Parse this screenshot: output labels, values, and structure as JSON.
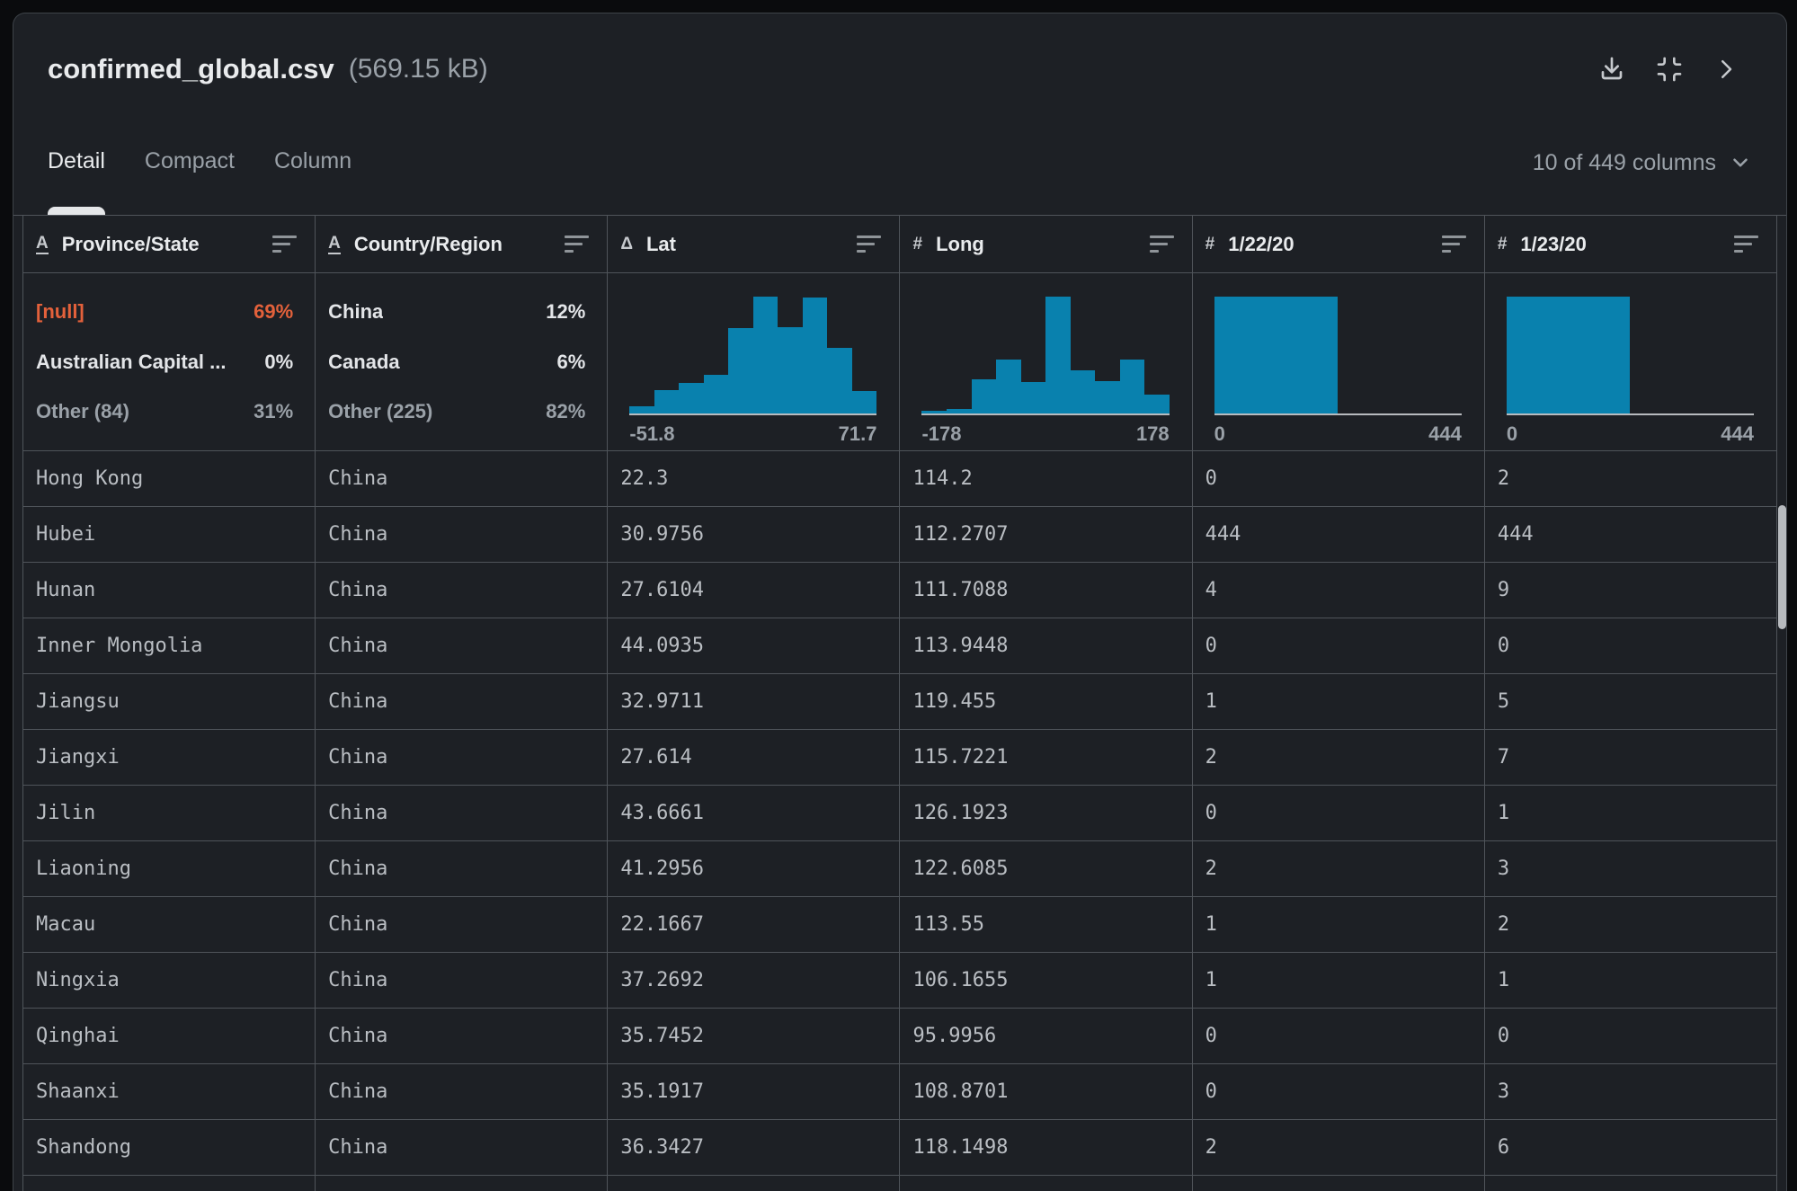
{
  "header": {
    "title": "confirmed_global.csv",
    "size": "(569.15 kB)",
    "action_icons": [
      "download-icon",
      "collapse-icon",
      "chevron-right-icon"
    ]
  },
  "tabs": [
    {
      "label": "Detail",
      "active": true
    },
    {
      "label": "Compact",
      "active": false
    },
    {
      "label": "Column",
      "active": false
    }
  ],
  "columns_selector": {
    "label": "10 of 449 columns",
    "icon": "chevron-down-icon"
  },
  "table": {
    "columns": [
      {
        "name": "Province/State",
        "type_icon": "A",
        "type_underline": true,
        "summary": {
          "items": [
            {
              "label": "[null]",
              "pct": "69%",
              "style": "null"
            },
            {
              "label": "Australian Capital ...",
              "pct": "0%",
              "style": "normal"
            },
            {
              "label": "Other (84)",
              "pct": "31%",
              "style": "muted"
            }
          ]
        }
      },
      {
        "name": "Country/Region",
        "type_icon": "A",
        "type_underline": true,
        "summary": {
          "items": [
            {
              "label": "China",
              "pct": "12%",
              "style": "normal"
            },
            {
              "label": "Canada",
              "pct": "6%",
              "style": "normal"
            },
            {
              "label": "Other (225)",
              "pct": "82%",
              "style": "muted"
            }
          ]
        }
      },
      {
        "name": "Lat",
        "type_icon": "Δ",
        "type_underline": false,
        "summary": {
          "min": "-51.8",
          "max": "71.7",
          "bins": [
            0.06,
            0.2,
            0.26,
            0.33,
            0.73,
            1.0,
            0.74,
            0.99,
            0.56,
            0.19
          ]
        }
      },
      {
        "name": "Long",
        "type_icon": "#",
        "type_underline": false,
        "summary": {
          "min": "-178",
          "max": "178",
          "bins": [
            0.02,
            0.04,
            0.29,
            0.46,
            0.27,
            1.0,
            0.37,
            0.28,
            0.46,
            0.16
          ]
        }
      },
      {
        "name": "1/22/20",
        "type_icon": "#",
        "type_underline": false,
        "summary": {
          "min": "0",
          "max": "444",
          "bins": [
            1.0,
            0
          ]
        }
      },
      {
        "name": "1/23/20",
        "type_icon": "#",
        "type_underline": false,
        "summary": {
          "min": "0",
          "max": "444",
          "bins": [
            1.0,
            0
          ]
        }
      }
    ],
    "rows": [
      [
        "Hong Kong",
        "China",
        "22.3",
        "114.2",
        "0",
        "2"
      ],
      [
        "Hubei",
        "China",
        "30.9756",
        "112.2707",
        "444",
        "444"
      ],
      [
        "Hunan",
        "China",
        "27.6104",
        "111.7088",
        "4",
        "9"
      ],
      [
        "Inner Mongolia",
        "China",
        "44.0935",
        "113.9448",
        "0",
        "0"
      ],
      [
        "Jiangsu",
        "China",
        "32.9711",
        "119.455",
        "1",
        "5"
      ],
      [
        "Jiangxi",
        "China",
        "27.614",
        "115.7221",
        "2",
        "7"
      ],
      [
        "Jilin",
        "China",
        "43.6661",
        "126.1923",
        "0",
        "1"
      ],
      [
        "Liaoning",
        "China",
        "41.2956",
        "122.6085",
        "2",
        "3"
      ],
      [
        "Macau",
        "China",
        "22.1667",
        "113.55",
        "1",
        "2"
      ],
      [
        "Ningxia",
        "China",
        "37.2692",
        "106.1655",
        "1",
        "1"
      ],
      [
        "Qinghai",
        "China",
        "35.7452",
        "95.9956",
        "0",
        "0"
      ],
      [
        "Shaanxi",
        "China",
        "35.1917",
        "108.8701",
        "0",
        "3"
      ],
      [
        "Shandong",
        "China",
        "36.3427",
        "118.1498",
        "2",
        "6"
      ]
    ]
  },
  "colors": {
    "page_bg": "#0a0b0d",
    "panel_bg": "#1d2025",
    "panel_border": "#3e4349",
    "border": "#4f545a",
    "text_primary": "#e9ebed",
    "text_muted": "#9aa1a8",
    "cell_text": "#babec3",
    "hist_bar": "#0981ae",
    "null_accent": "#e3613b",
    "baseline": "#b7babe",
    "icon": "#c6c9cd"
  }
}
